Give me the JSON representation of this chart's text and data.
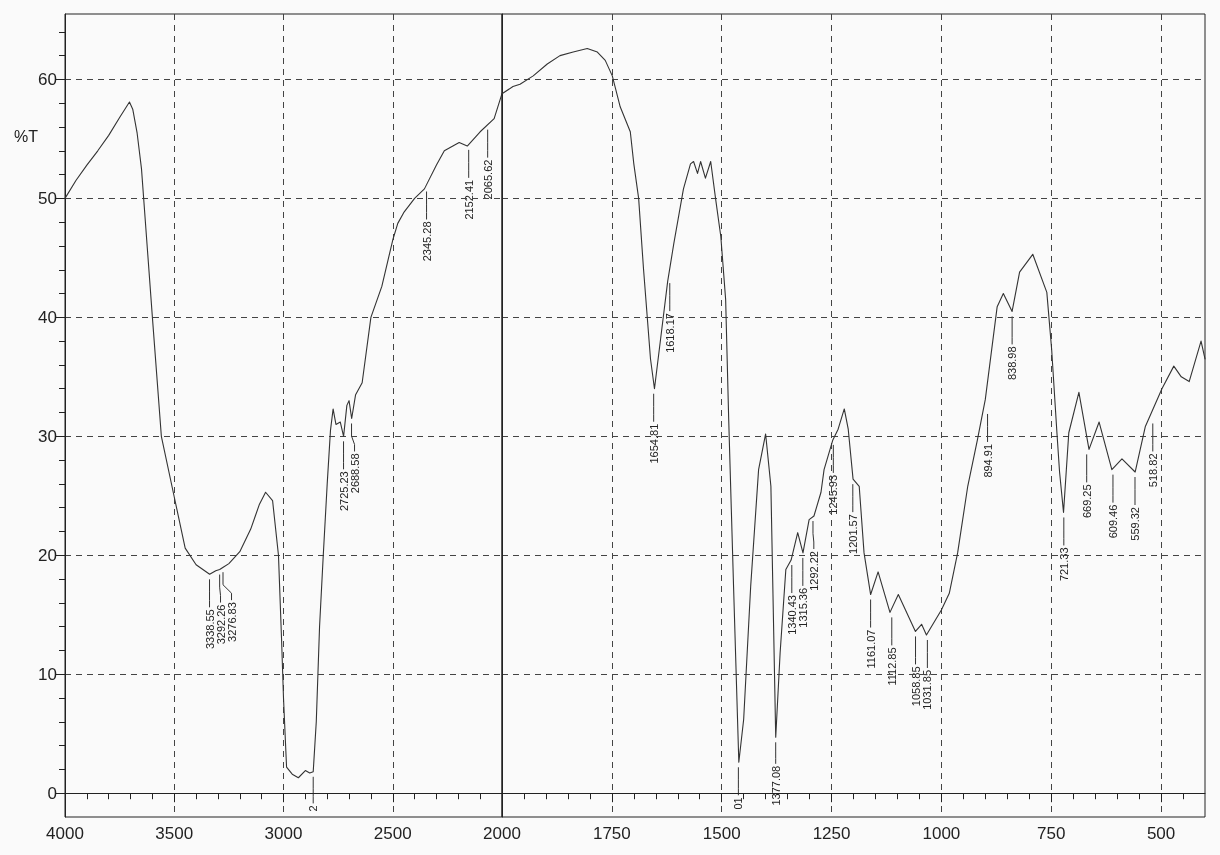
{
  "chart_data": [
    {
      "type": "line",
      "ylabel": "%T",
      "xlim": [
        4000,
        2000
      ],
      "ylim": [
        -2,
        65.5
      ],
      "xticks": [
        4000,
        3500,
        3000,
        2500,
        2000,
        {
          "value": 3900,
          "label": null
        },
        {
          "value": 3800,
          "label": null
        },
        {
          "value": 3700,
          "label": null
        },
        {
          "value": 3600,
          "label": null
        },
        {
          "value": 3400,
          "label": null
        },
        {
          "value": 3300,
          "label": null
        },
        {
          "value": 3200,
          "label": null
        },
        {
          "value": 3100,
          "label": null
        },
        {
          "value": 2900,
          "label": null
        },
        {
          "value": 2800,
          "label": null
        },
        {
          "value": 2700,
          "label": null
        },
        {
          "value": 2600,
          "label": null
        },
        {
          "value": 2400,
          "label": null
        },
        {
          "value": 2300,
          "label": null
        },
        {
          "value": 2200,
          "label": null
        },
        {
          "value": 2100,
          "label": null
        }
      ],
      "yticks": [
        0,
        10,
        20,
        30,
        40,
        50,
        60,
        {
          "value": 2,
          "label": null
        },
        {
          "value": 4,
          "label": null
        },
        {
          "value": 6,
          "label": null
        },
        {
          "value": 8,
          "label": null
        },
        {
          "value": 12,
          "label": null
        },
        {
          "value": 14,
          "label": null
        },
        {
          "value": 16,
          "label": null
        },
        {
          "value": 18,
          "label": null
        },
        {
          "value": 22,
          "label": null
        },
        {
          "value": 24,
          "label": null
        },
        {
          "value": 26,
          "label": null
        },
        {
          "value": 28,
          "label": null
        },
        {
          "value": 32,
          "label": null
        },
        {
          "value": 34,
          "label": null
        },
        {
          "value": 36,
          "label": null
        },
        {
          "value": 38,
          "label": null
        },
        {
          "value": 42,
          "label": null
        },
        {
          "value": 44,
          "label": null
        },
        {
          "value": 46,
          "label": null
        },
        {
          "value": 48,
          "label": null
        },
        {
          "value": 52,
          "label": null
        },
        {
          "value": 54,
          "label": null
        },
        {
          "value": 56,
          "label": null
        },
        {
          "value": 58,
          "label": null
        },
        {
          "value": 62,
          "label": null
        },
        {
          "value": 64,
          "label": null
        }
      ],
      "grid": true,
      "marker": "none",
      "line_style": "solid",
      "series": [
        {
          "color": "#333333",
          "x": [
            4000,
            3950,
            3900,
            3850,
            3800,
            3750,
            3705,
            3690,
            3670,
            3650,
            3600,
            3559,
            3500,
            3450,
            3400,
            3338,
            3310,
            3292,
            3276,
            3250,
            3200,
            3150,
            3110,
            3082,
            3050,
            3023,
            3009,
            3000,
            2986,
            2960,
            2932,
            2900,
            2880,
            2864,
            2850,
            2835,
            2818,
            2800,
            2785,
            2773,
            2760,
            2740,
            2725,
            2710,
            2700,
            2688,
            2670,
            2640,
            2600,
            2550,
            2500,
            2477,
            2450,
            2400,
            2355,
            2300,
            2264,
            2196,
            2159,
            2100,
            2036,
            2000
          ],
          "values": [
            50.0,
            51.5,
            52.8,
            54.0,
            55.3,
            56.8,
            58.1,
            57.5,
            55.5,
            52.5,
            40,
            30,
            24.9,
            20.6,
            19.2,
            18.4,
            18.7,
            18.8,
            19.0,
            19.3,
            20.3,
            22.2,
            24.3,
            25.3,
            24.6,
            20,
            13,
            8,
            2.2,
            1.6,
            1.3,
            1.9,
            1.7,
            1.8,
            6,
            14,
            20,
            26,
            30.5,
            32.3,
            31,
            31.2,
            30,
            32.6,
            33,
            31.5,
            33.5,
            34.5,
            40,
            42.6,
            46.5,
            47.9,
            48.8,
            50,
            50.8,
            52.8,
            54.0,
            54.7,
            54.4,
            55.6,
            56.7,
            58.8
          ]
        }
      ],
      "annotations": [
        {
          "text": "3338.55",
          "x": 3338.55,
          "y": 18.4
        },
        {
          "text": "3292.26",
          "x": 3292.26,
          "y": 18.8
        },
        {
          "text": "3276.83",
          "x": 3276.83,
          "y": 19.0
        },
        {
          "text": "2",
          "x": 2864,
          "y": 1.8
        },
        {
          "text": "2725.23",
          "x": 2725.23,
          "y": 30.0
        },
        {
          "text": "2688.58",
          "x": 2688.58,
          "y": 31.5
        },
        {
          "text": "2345.28",
          "x": 2345.28,
          "y": 51.0
        },
        {
          "text": "2152.41",
          "x": 2152.41,
          "y": 54.5
        },
        {
          "text": "2065.62",
          "x": 2065.62,
          "y": 56.2
        }
      ]
    },
    {
      "type": "line",
      "xlim": [
        2000,
        400
      ],
      "ylim": [
        -2,
        65.5
      ],
      "tick_labels": "x",
      "xticks": [
        1750,
        1500,
        1250,
        1000,
        750,
        500,
        {
          "value": 1950,
          "label": null
        },
        {
          "value": 1900,
          "label": null
        },
        {
          "value": 1850,
          "label": null
        },
        {
          "value": 1800,
          "label": null
        },
        {
          "value": 1700,
          "label": null
        },
        {
          "value": 1650,
          "label": null
        },
        {
          "value": 1600,
          "label": null
        },
        {
          "value": 1550,
          "label": null
        },
        {
          "value": 1450,
          "label": null
        },
        {
          "value": 1400,
          "label": null
        },
        {
          "value": 1350,
          "label": null
        },
        {
          "value": 1300,
          "label": null
        },
        {
          "value": 1200,
          "label": null
        },
        {
          "value": 1150,
          "label": null
        },
        {
          "value": 1100,
          "label": null
        },
        {
          "value": 1050,
          "label": null
        },
        {
          "value": 950,
          "label": null
        },
        {
          "value": 900,
          "label": null
        },
        {
          "value": 850,
          "label": null
        },
        {
          "value": 800,
          "label": null
        },
        {
          "value": 700,
          "label": null
        },
        {
          "value": 650,
          "label": null
        },
        {
          "value": 600,
          "label": null
        },
        {
          "value": 550,
          "label": null
        },
        {
          "value": 450,
          "label": null
        }
      ],
      "yticks": [
        0,
        10,
        20,
        30,
        40,
        50,
        60
      ],
      "grid": true,
      "marker": "none",
      "line_style": "solid",
      "series": [
        {
          "color": "#333333",
          "x": [
            2000,
            1975,
            1959,
            1929,
            1897,
            1868,
            1838,
            1806,
            1783,
            1765,
            1749,
            1731,
            1708,
            1700,
            1689,
            1678,
            1662,
            1653,
            1639,
            1623,
            1609,
            1587,
            1571,
            1564,
            1555,
            1548,
            1537,
            1525,
            1514,
            1502,
            1491,
            1484,
            1473,
            1461,
            1450,
            1434,
            1416,
            1400,
            1388,
            1377,
            1367,
            1354,
            1342,
            1327,
            1315,
            1301,
            1290,
            1274,
            1267,
            1247,
            1235,
            1221,
            1212,
            1201,
            1187,
            1176,
            1161,
            1144,
            1117,
            1098,
            1059,
            1045,
            1034,
            1000,
            982,
            963,
            940,
            918,
            900,
            873,
            859,
            839,
            822,
            792,
            760,
            749,
            737,
            731,
            722,
            710,
            687,
            664,
            641,
            612,
            589,
            559,
            536,
            498,
            471,
            454,
            436,
            409,
            400
          ],
          "values": [
            58.8,
            59.4,
            59.6,
            60.3,
            61.3,
            62.0,
            62.3,
            62.6,
            62.3,
            61.6,
            60.3,
            57.7,
            55.6,
            52.9,
            50.0,
            44.1,
            36.5,
            34.0,
            38.2,
            43.0,
            46.2,
            50.8,
            52.9,
            53.1,
            52.1,
            53.1,
            51.7,
            53.1,
            50.0,
            46.8,
            41.5,
            31.4,
            17.4,
            2.6,
            6.2,
            17.4,
            27.2,
            30.2,
            25.8,
            4.7,
            11.8,
            18.8,
            19.6,
            21.9,
            20.2,
            23.0,
            23.3,
            25.3,
            27.2,
            29.7,
            30.6,
            32.3,
            30.6,
            26.4,
            25.8,
            20.2,
            16.7,
            18.6,
            15.2,
            16.7,
            13.6,
            14.2,
            13.3,
            15.4,
            16.8,
            20.2,
            25.8,
            29.7,
            33.1,
            40.9,
            42.0,
            40.5,
            43.8,
            45.3,
            42.1,
            37.3,
            30.3,
            27,
            23.6,
            30.3,
            33.7,
            28.9,
            31.2,
            27.2,
            28.1,
            27.0,
            30.8,
            34.0,
            35.9,
            35.0,
            34.6,
            38.0,
            36.5
          ]
        }
      ],
      "annotations": [
        {
          "text": "1654.81",
          "x": 1654.81,
          "y": 34.0
        },
        {
          "text": "1618.17",
          "x": 1618.17,
          "y": 43.3
        },
        {
          "text": "01",
          "x": 1462,
          "y": 2.6
        },
        {
          "text": "1377.08",
          "x": 1377.08,
          "y": 4.7
        },
        {
          "text": "1340.43",
          "x": 1340.43,
          "y": 19.6
        },
        {
          "text": "1315.36",
          "x": 1315.36,
          "y": 20.2
        },
        {
          "text": "1292.22",
          "x": 1292.22,
          "y": 23.3
        },
        {
          "text": "1245.93",
          "x": 1245.93,
          "y": 29.7
        },
        {
          "text": "1201.57",
          "x": 1201.57,
          "y": 26.4
        },
        {
          "text": "1161.07",
          "x": 1161.07,
          "y": 16.7
        },
        {
          "text": "1112.85",
          "x": 1112.85,
          "y": 15.2
        },
        {
          "text": "1058.85",
          "x": 1058.85,
          "y": 13.6
        },
        {
          "text": "1031.85",
          "x": 1031.85,
          "y": 13.3
        },
        {
          "text": "894.91",
          "x": 894.91,
          "y": 32.3
        },
        {
          "text": "838.98",
          "x": 838.98,
          "y": 40.5
        },
        {
          "text": "721.33",
          "x": 721.33,
          "y": 23.6
        },
        {
          "text": "669.25",
          "x": 669.25,
          "y": 28.9
        },
        {
          "text": "609.46",
          "x": 609.46,
          "y": 27.2
        },
        {
          "text": "559.32",
          "x": 559.32,
          "y": 27.0
        },
        {
          "text": "518.82",
          "x": 518.82,
          "y": 31.5
        }
      ]
    }
  ]
}
